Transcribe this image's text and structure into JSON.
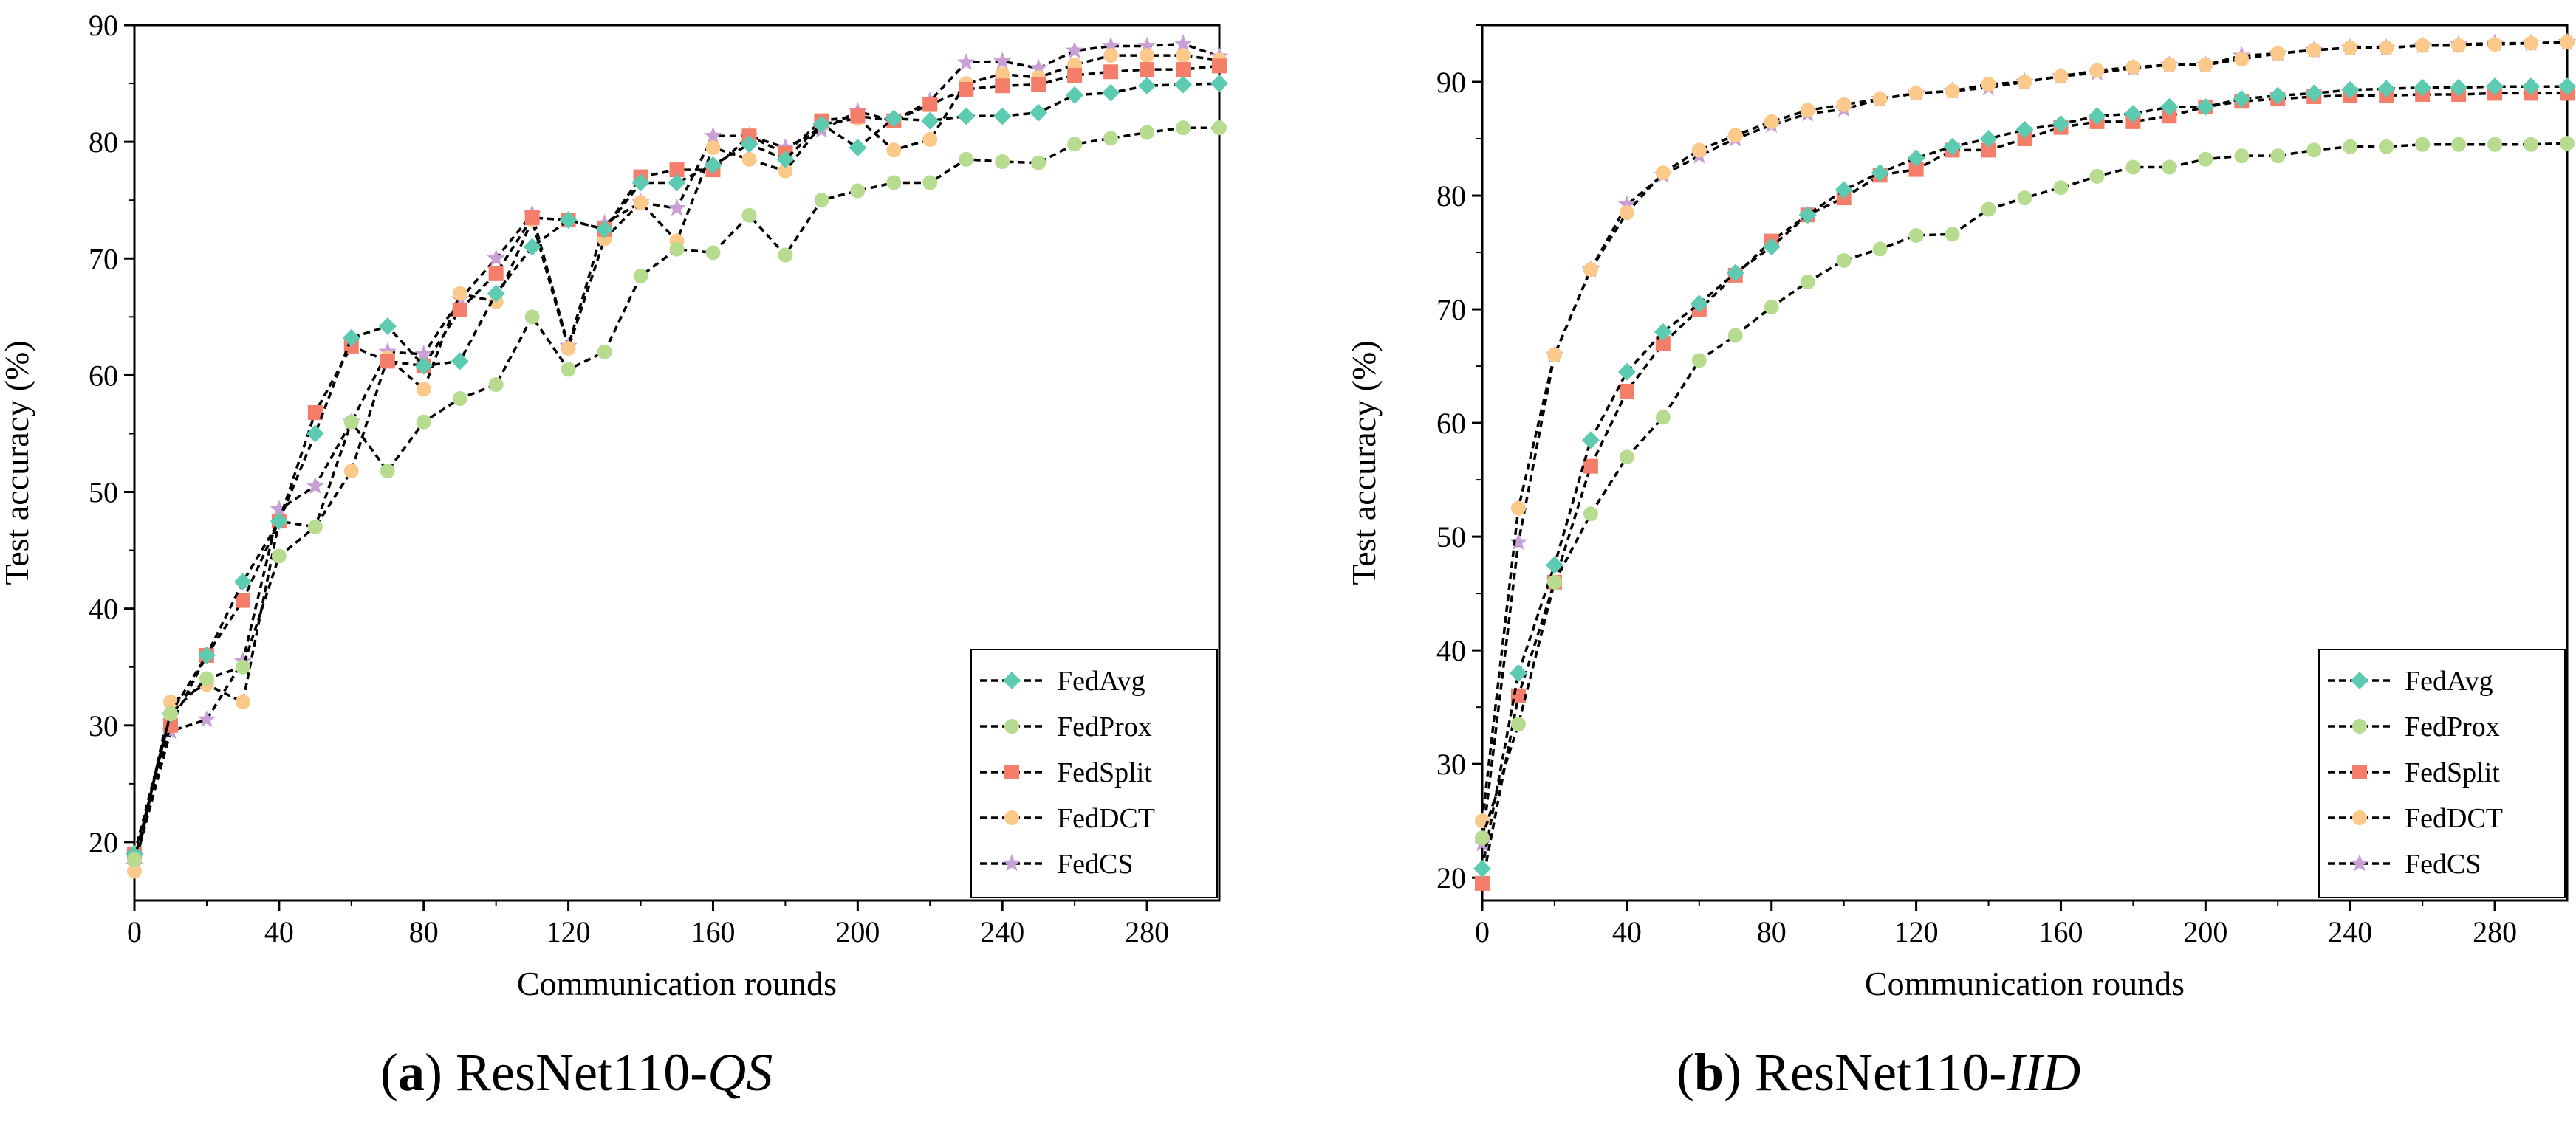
{
  "colors": {
    "FedAvg": "#5ccbb1",
    "FedProx": "#b7dc90",
    "FedSplit": "#f57e6b",
    "FedDCT": "#fbc98a",
    "FedCS": "#c8a0d6"
  },
  "markers": {
    "FedAvg": "diamond",
    "FedProx": "circle",
    "FedSplit": "square",
    "FedDCT": "circle",
    "FedCS": "star"
  },
  "chart_data": [
    {
      "id": "a",
      "type": "line",
      "caption": {
        "letter": "a",
        "text": "ResNet110-",
        "italic": "QS"
      },
      "title": "",
      "xlabel": "Communication rounds",
      "ylabel": "Test accuracy (%)",
      "xlim": [
        0,
        300
      ],
      "ylim": [
        15,
        90
      ],
      "xticks": [
        0,
        40,
        80,
        120,
        160,
        200,
        240,
        280
      ],
      "yticks": [
        20,
        30,
        40,
        50,
        60,
        70,
        80,
        90
      ],
      "legend_position": "bottom-right",
      "x": [
        0,
        10,
        20,
        30,
        40,
        50,
        60,
        70,
        80,
        90,
        100,
        110,
        120,
        130,
        140,
        150,
        160,
        170,
        180,
        190,
        200,
        210,
        220,
        230,
        240,
        250,
        260,
        270,
        280,
        290,
        300
      ],
      "series": [
        {
          "name": "FedAvg",
          "values": [
            19,
            31,
            36,
            42.3,
            47.5,
            55,
            63.2,
            64.2,
            60.8,
            61.2,
            67,
            71,
            73.3,
            72.5,
            76.5,
            76.5,
            78,
            79.8,
            78.5,
            81.5,
            79.5,
            82,
            81.8,
            82.2,
            82.2,
            82.5,
            84,
            84.2,
            84.8,
            84.9,
            85
          ]
        },
        {
          "name": "FedProx",
          "values": [
            18.5,
            31,
            34,
            35,
            44.5,
            47,
            56,
            51.8,
            56,
            58,
            59.2,
            65,
            60.5,
            62,
            68.5,
            70.8,
            70.5,
            73.7,
            70.3,
            75,
            75.8,
            76.5,
            76.5,
            78.5,
            78.3,
            78.2,
            79.8,
            80.3,
            80.8,
            81.2,
            81.2
          ]
        },
        {
          "name": "FedSplit",
          "values": [
            19,
            30,
            36,
            40.7,
            47.5,
            56.8,
            62.5,
            61.2,
            60.8,
            65.6,
            68.7,
            73.5,
            73.3,
            72.5,
            77,
            77.6,
            77.6,
            80.5,
            79,
            81.8,
            82.2,
            81.8,
            83.2,
            84.5,
            84.8,
            84.9,
            85.7,
            86,
            86.2,
            86.2,
            86.5
          ]
        },
        {
          "name": "FedDCT",
          "values": [
            17.5,
            32,
            33.5,
            32,
            47.5,
            47,
            51.8,
            61.5,
            58.8,
            67,
            66.3,
            73.3,
            62.3,
            71.7,
            74.8,
            71.5,
            79.5,
            78.5,
            77.5,
            81.5,
            82,
            79.3,
            80.2,
            85,
            85.8,
            85.5,
            86.6,
            87.4,
            87.4,
            87.4,
            87
          ]
        },
        {
          "name": "FedCS",
          "values": [
            18,
            29.5,
            30.5,
            35.5,
            48.5,
            50.5,
            56,
            62,
            61.8,
            66.5,
            70,
            73.8,
            62.5,
            73,
            74.8,
            74.3,
            80.5,
            80.5,
            79.5,
            81,
            82.6,
            81.8,
            83.5,
            86.8,
            86.9,
            86.3,
            87.8,
            88.2,
            88.2,
            88.4,
            87.3
          ]
        }
      ]
    },
    {
      "id": "b",
      "type": "line",
      "caption": {
        "letter": "b",
        "text": "ResNet110-",
        "italic": "IID"
      },
      "title": "",
      "xlabel": "Communication rounds",
      "ylabel": "Test accuracy (%)",
      "xlim": [
        0,
        300
      ],
      "ylim": [
        18,
        95
      ],
      "xticks": [
        0,
        40,
        80,
        120,
        160,
        200,
        240,
        280
      ],
      "yticks": [
        20,
        30,
        40,
        50,
        60,
        70,
        80,
        90
      ],
      "legend_position": "bottom-right",
      "x": [
        0,
        10,
        20,
        30,
        40,
        50,
        60,
        70,
        80,
        90,
        100,
        110,
        120,
        130,
        140,
        150,
        160,
        170,
        180,
        190,
        200,
        210,
        220,
        230,
        240,
        250,
        260,
        270,
        280,
        290,
        300
      ],
      "series": [
        {
          "name": "FedAvg",
          "values": [
            20.8,
            38,
            47.5,
            58.5,
            64.5,
            68,
            70.5,
            73.2,
            75.5,
            78.3,
            80.5,
            82,
            83.3,
            84.3,
            85,
            85.8,
            86.3,
            87,
            87.2,
            87.8,
            87.8,
            88.5,
            88.8,
            89,
            89.3,
            89.4,
            89.5,
            89.5,
            89.6,
            89.6,
            89.6
          ]
        },
        {
          "name": "FedProx",
          "values": [
            23.5,
            33.5,
            46,
            52,
            57,
            60.5,
            65.5,
            67.7,
            70.2,
            72.4,
            74.3,
            75.3,
            76.5,
            76.6,
            78.8,
            79.8,
            80.7,
            81.7,
            82.5,
            82.5,
            83.2,
            83.5,
            83.5,
            84,
            84.3,
            84.3,
            84.5,
            84.5,
            84.5,
            84.5,
            84.6
          ]
        },
        {
          "name": "FedSplit",
          "values": [
            19.5,
            36,
            46,
            56.2,
            62.8,
            67,
            70,
            73,
            76,
            78.3,
            79.8,
            81.8,
            82.3,
            84,
            84,
            85,
            86,
            86.5,
            86.5,
            87,
            87.8,
            88.3,
            88.5,
            88.7,
            88.8,
            88.8,
            88.9,
            88.9,
            89,
            89,
            89
          ]
        },
        {
          "name": "FedDCT",
          "values": [
            25,
            52.5,
            66,
            73.5,
            78.5,
            82,
            84,
            85.3,
            86.5,
            87.5,
            88,
            88.5,
            89,
            89.2,
            89.8,
            90,
            90.5,
            91,
            91.3,
            91.5,
            91.5,
            92,
            92.5,
            92.8,
            93,
            93,
            93.2,
            93.2,
            93.3,
            93.4,
            93.5
          ]
        },
        {
          "name": "FedCS",
          "values": [
            23,
            49.5,
            66,
            73.5,
            79.2,
            81.8,
            83.5,
            85,
            86.2,
            87.2,
            87.6,
            88.5,
            89,
            89.2,
            89.5,
            90,
            90.5,
            90.8,
            91.2,
            91.5,
            91.5,
            92.3,
            92.5,
            92.8,
            93,
            93,
            93.2,
            93.3,
            93.4,
            93.4,
            93.5
          ]
        }
      ]
    }
  ]
}
